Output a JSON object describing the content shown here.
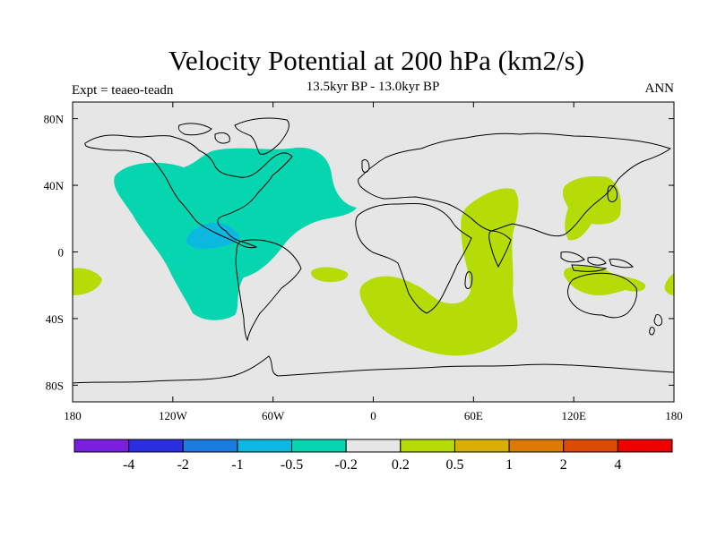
{
  "title": "Velocity Potential at 200 hPa (km2/s)",
  "subtitle": "13.5kyr BP - 13.0kyr BP",
  "experiment": "Expt = teaeo-teadn",
  "period": "ANN",
  "map": {
    "projection": "cylindrical-equidistant",
    "lon_range": [
      -180,
      180
    ],
    "lat_range": [
      -90,
      90
    ],
    "lon_ticks": [
      {
        "value": -180,
        "label": "180"
      },
      {
        "value": -120,
        "label": "120W"
      },
      {
        "value": -60,
        "label": "60W"
      },
      {
        "value": 0,
        "label": "0"
      },
      {
        "value": 60,
        "label": "60E"
      },
      {
        "value": 120,
        "label": "120E"
      },
      {
        "value": 180,
        "label": "180"
      }
    ],
    "lat_ticks": [
      {
        "value": 80,
        "label": "80N"
      },
      {
        "value": 40,
        "label": "40N"
      },
      {
        "value": 0,
        "label": "0"
      },
      {
        "value": -40,
        "label": "40S"
      },
      {
        "value": -80,
        "label": "80S"
      }
    ],
    "background_color": "#e6e6e6",
    "coastline_color": "#000000"
  },
  "colorbar": {
    "colors": [
      "#7a1ee0",
      "#2a2ee0",
      "#1a7ce0",
      "#0ab8e0",
      "#06d6b0",
      "#e6e6e6",
      "#b5dc07",
      "#d8b005",
      "#dc7a05",
      "#dc4a05",
      "#ee0000"
    ],
    "labels": [
      "-4",
      "-2",
      "-1",
      "-0.5",
      "-0.2",
      "0.2",
      "0.5",
      "1",
      "2",
      "4"
    ]
  },
  "regions": [
    {
      "name": "americas-negative",
      "level_color": "#06d6b0"
    },
    {
      "name": "central-america-negative-core",
      "level_color": "#0ab8e0"
    },
    {
      "name": "indian-ocean-positive",
      "level_color": "#b5dc07"
    },
    {
      "name": "west-pacific-positive",
      "level_color": "#b5dc07"
    },
    {
      "name": "australia-positive",
      "level_color": "#b5dc07"
    },
    {
      "name": "dateline-positive",
      "level_color": "#b5dc07"
    },
    {
      "name": "south-atlantic-positive",
      "level_color": "#b5dc07"
    }
  ]
}
